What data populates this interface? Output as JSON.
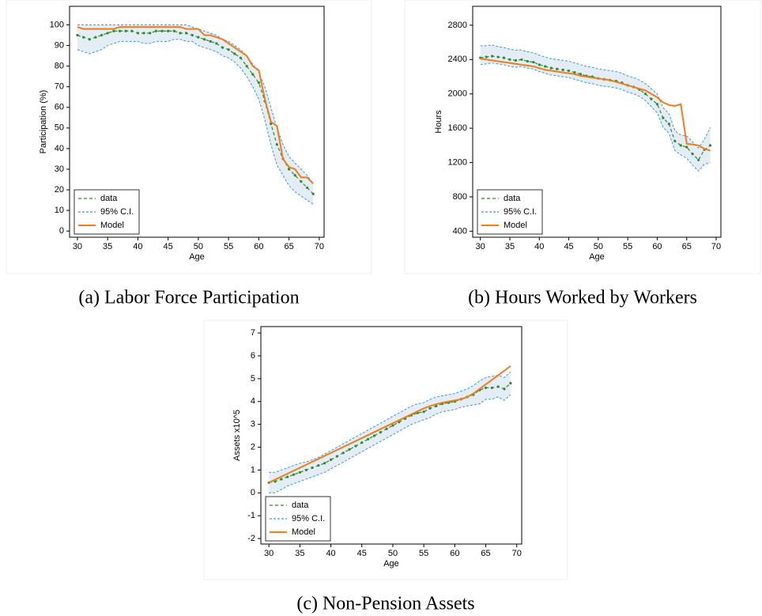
{
  "chart_data": [
    {
      "type": "line",
      "caption": "(a) Labor Force Participation",
      "x_label": "Age",
      "y_label": "Participation (%)",
      "x": [
        30,
        31,
        32,
        33,
        34,
        35,
        36,
        37,
        38,
        39,
        40,
        41,
        42,
        43,
        44,
        45,
        46,
        47,
        48,
        49,
        50,
        51,
        52,
        53,
        54,
        55,
        56,
        57,
        58,
        59,
        60,
        61,
        62,
        63,
        64,
        65,
        66,
        67,
        68,
        69
      ],
      "xlim": [
        28.7,
        70.8
      ],
      "xticks": [
        30,
        35,
        40,
        45,
        50,
        55,
        60,
        65,
        70
      ],
      "ylim": [
        -3,
        109
      ],
      "yticks": [
        0,
        10,
        20,
        30,
        40,
        50,
        60,
        70,
        80,
        90,
        100
      ],
      "series": [
        {
          "name": "data",
          "color": "#2e8b2e",
          "values": [
            95,
            94,
            93,
            94,
            95,
            96,
            97,
            97,
            97,
            97,
            96,
            96,
            96,
            97,
            97,
            97,
            97,
            96,
            96,
            95,
            94,
            93,
            92,
            91,
            89,
            88,
            86,
            84,
            80,
            76,
            72,
            63,
            52,
            42,
            35,
            30,
            27,
            24,
            21,
            18
          ]
        },
        {
          "name": "95% C.I.",
          "color": "#3a9bd1",
          "lower": [
            88,
            87,
            86,
            87,
            88,
            90,
            91,
            92,
            92,
            92,
            92,
            91,
            91,
            92,
            92,
            92,
            93,
            93,
            92,
            92,
            90,
            89,
            88,
            87,
            85,
            84,
            82,
            79,
            75,
            70,
            64,
            54,
            42,
            32,
            27,
            22,
            19,
            17,
            15,
            13
          ],
          "upper": [
            100,
            100,
            100,
            100,
            100,
            100,
            100,
            100,
            100,
            100,
            100,
            100,
            100,
            100,
            100,
            100,
            100,
            100,
            100,
            99,
            98,
            97,
            96,
            95,
            93,
            92,
            90,
            88,
            85,
            81,
            77,
            70,
            60,
            50,
            42,
            36,
            33,
            30,
            27,
            23
          ]
        },
        {
          "name": "Model",
          "color": "#f07d1a",
          "values": [
            99,
            98,
            98,
            98,
            98,
            98,
            98,
            99,
            99,
            99,
            99,
            99,
            99,
            99,
            99,
            99,
            99,
            99,
            98,
            98,
            98,
            95,
            95,
            94,
            93,
            91,
            89,
            87,
            85,
            80,
            78,
            64,
            53,
            51,
            35,
            31,
            30,
            26,
            26,
            23
          ]
        }
      ]
    },
    {
      "type": "line",
      "caption": "(b) Hours Worked by Workers",
      "x_label": "Age",
      "y_label": "Hours",
      "x": [
        30,
        31,
        32,
        33,
        34,
        35,
        36,
        37,
        38,
        39,
        40,
        41,
        42,
        43,
        44,
        45,
        46,
        47,
        48,
        49,
        50,
        51,
        52,
        53,
        54,
        55,
        56,
        57,
        58,
        59,
        60,
        61,
        62,
        63,
        64,
        65,
        66,
        67,
        68,
        69
      ],
      "xlim": [
        28.7,
        70.8
      ],
      "xticks": [
        30,
        35,
        40,
        45,
        50,
        55,
        60,
        65,
        70
      ],
      "ylim": [
        330,
        3020
      ],
      "yticks": [
        400,
        800,
        1200,
        1600,
        2000,
        2400,
        2800
      ],
      "series": [
        {
          "name": "data",
          "color": "#2e8b2e",
          "values": [
            2420,
            2430,
            2440,
            2430,
            2420,
            2400,
            2390,
            2400,
            2380,
            2370,
            2340,
            2320,
            2300,
            2290,
            2280,
            2270,
            2250,
            2230,
            2210,
            2200,
            2180,
            2170,
            2160,
            2150,
            2130,
            2100,
            2080,
            2050,
            2000,
            1940,
            1880,
            1720,
            1650,
            1450,
            1400,
            1380,
            1300,
            1230,
            1350,
            1400
          ]
        },
        {
          "name": "95% C.I.",
          "color": "#3a9bd1",
          "lower": [
            2340,
            2350,
            2360,
            2350,
            2340,
            2320,
            2310,
            2320,
            2300,
            2290,
            2260,
            2240,
            2220,
            2210,
            2200,
            2190,
            2170,
            2150,
            2130,
            2120,
            2100,
            2090,
            2080,
            2070,
            2050,
            2020,
            2000,
            1970,
            1920,
            1850,
            1780,
            1610,
            1540,
            1340,
            1290,
            1250,
            1170,
            1100,
            1180,
            1200
          ],
          "upper": [
            2560,
            2560,
            2570,
            2550,
            2540,
            2520,
            2510,
            2510,
            2490,
            2480,
            2450,
            2430,
            2410,
            2400,
            2390,
            2380,
            2360,
            2340,
            2320,
            2310,
            2290,
            2280,
            2270,
            2260,
            2240,
            2210,
            2190,
            2160,
            2120,
            2060,
            2000,
            1840,
            1770,
            1570,
            1520,
            1510,
            1440,
            1370,
            1470,
            1610
          ]
        },
        {
          "name": "Model",
          "color": "#f07d1a",
          "values": [
            2410,
            2400,
            2390,
            2380,
            2370,
            2360,
            2350,
            2340,
            2330,
            2320,
            2300,
            2280,
            2270,
            2260,
            2250,
            2240,
            2230,
            2210,
            2200,
            2190,
            2180,
            2170,
            2160,
            2140,
            2120,
            2100,
            2080,
            2060,
            2040,
            2000,
            1960,
            1900,
            1870,
            1860,
            1880,
            1420,
            1410,
            1400,
            1360,
            1340
          ]
        }
      ]
    },
    {
      "type": "line",
      "caption": "(c) Non-Pension Assets",
      "x_label": "Age",
      "y_label": "Assets x10^5",
      "x": [
        30,
        31,
        32,
        33,
        34,
        35,
        36,
        37,
        38,
        39,
        40,
        41,
        42,
        43,
        44,
        45,
        46,
        47,
        48,
        49,
        50,
        51,
        52,
        53,
        54,
        55,
        56,
        57,
        58,
        59,
        60,
        61,
        62,
        63,
        64,
        65,
        66,
        67,
        68,
        69
      ],
      "xlim": [
        28.7,
        70.8
      ],
      "xticks": [
        30,
        35,
        40,
        45,
        50,
        55,
        60,
        65,
        70
      ],
      "ylim": [
        -2.24,
        7.28
      ],
      "yticks": [
        -2,
        -1,
        0,
        1,
        2,
        3,
        4,
        5,
        6,
        7
      ],
      "series": [
        {
          "name": "data",
          "color": "#2e8b2e",
          "values": [
            0.45,
            0.5,
            0.6,
            0.7,
            0.8,
            0.9,
            1.0,
            1.1,
            1.2,
            1.3,
            1.45,
            1.6,
            1.75,
            1.9,
            2.05,
            2.2,
            2.35,
            2.5,
            2.65,
            2.8,
            2.95,
            3.1,
            3.25,
            3.4,
            3.5,
            3.55,
            3.7,
            3.8,
            3.9,
            3.95,
            4.0,
            4.1,
            4.2,
            4.3,
            4.5,
            4.6,
            4.6,
            4.65,
            4.55,
            4.8
          ]
        },
        {
          "name": "95% C.I.",
          "color": "#3a9bd1",
          "lower": [
            0.0,
            0.0,
            0.15,
            0.3,
            0.4,
            0.5,
            0.6,
            0.7,
            0.8,
            0.9,
            1.05,
            1.2,
            1.35,
            1.5,
            1.65,
            1.8,
            1.95,
            2.1,
            2.25,
            2.4,
            2.55,
            2.7,
            2.85,
            3.0,
            3.1,
            3.2,
            3.3,
            3.45,
            3.55,
            3.6,
            3.65,
            3.75,
            3.8,
            3.85,
            3.9,
            4.1,
            4.1,
            4.2,
            4.05,
            4.3
          ],
          "upper": [
            0.9,
            0.9,
            1.0,
            1.1,
            1.2,
            1.3,
            1.35,
            1.45,
            1.55,
            1.7,
            1.85,
            2.0,
            2.15,
            2.3,
            2.45,
            2.6,
            2.75,
            2.9,
            3.05,
            3.2,
            3.35,
            3.5,
            3.65,
            3.8,
            3.9,
            3.95,
            4.1,
            4.2,
            4.25,
            4.3,
            4.35,
            4.45,
            4.55,
            4.7,
            4.9,
            5.05,
            5.1,
            5.15,
            5.05,
            5.3
          ]
        },
        {
          "name": "Model",
          "color": "#f07d1a",
          "values": [
            0.45,
            0.58,
            0.71,
            0.84,
            0.97,
            1.1,
            1.23,
            1.36,
            1.49,
            1.62,
            1.75,
            1.88,
            2.01,
            2.14,
            2.27,
            2.4,
            2.53,
            2.66,
            2.79,
            2.92,
            3.05,
            3.18,
            3.31,
            3.44,
            3.57,
            3.7,
            3.8,
            3.88,
            3.95,
            4.0,
            4.05,
            4.1,
            4.2,
            4.35,
            4.55,
            4.75,
            4.95,
            5.15,
            5.35,
            5.55
          ]
        }
      ]
    }
  ]
}
